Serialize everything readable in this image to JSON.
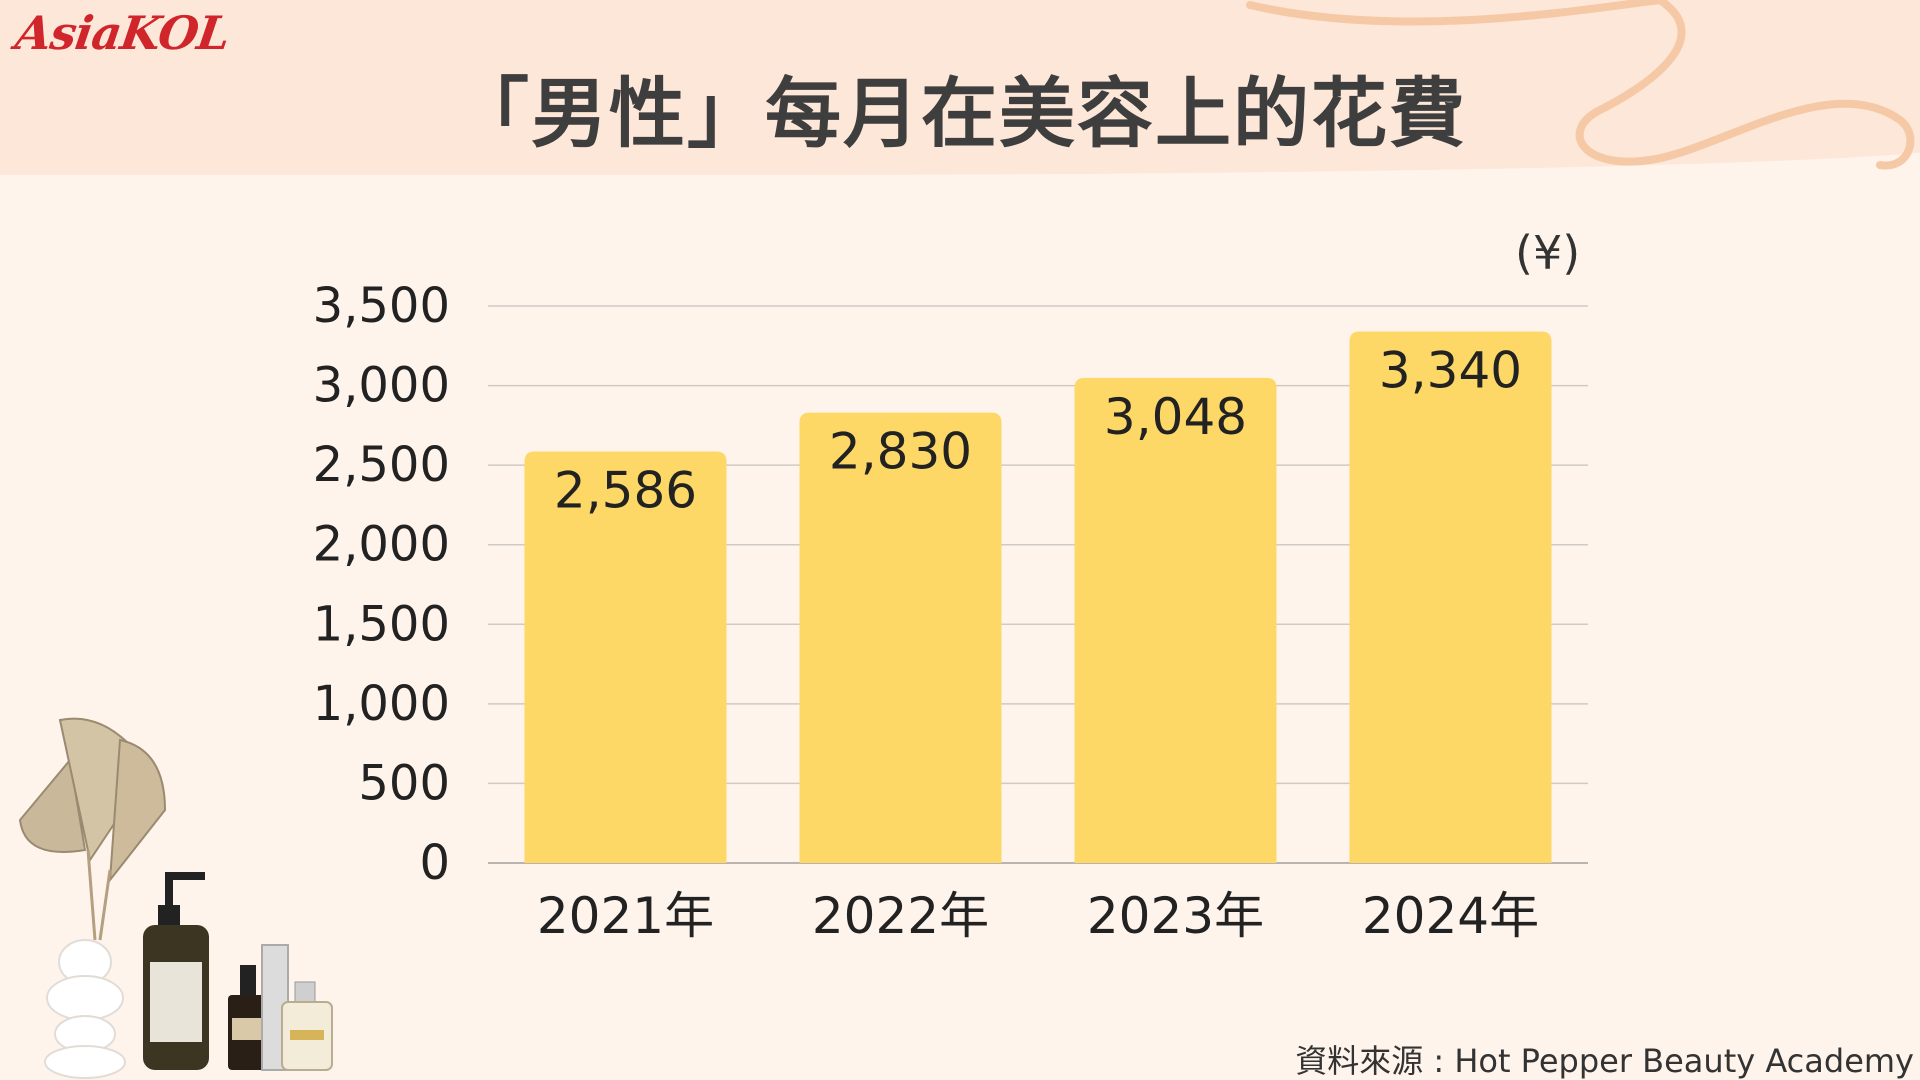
{
  "brand": {
    "logo_text": "AsiaKOL"
  },
  "title": "「男性」每月在美容上的花費",
  "unit_label": "(¥)",
  "source": "資料來源 : Hot Pepper Beauty Academy",
  "colors": {
    "background": "#fff4ec",
    "header_band": "#fde7d8",
    "bar": "#fdd866",
    "grid": "#cfcac6",
    "text": "#222222",
    "logo": "#d0262b"
  },
  "chart_data": {
    "type": "bar",
    "categories": [
      "2021年",
      "2022年",
      "2023年",
      "2024年"
    ],
    "values": [
      2586,
      2830,
      3048,
      3340
    ],
    "value_labels": [
      "2,586",
      "2,830",
      "3,048",
      "3,340"
    ],
    "ylim": [
      0,
      3500
    ],
    "yticks": [
      0,
      500,
      1000,
      1500,
      2000,
      2500,
      3000,
      3500
    ],
    "ytick_labels": [
      "0",
      "500",
      "1,000",
      "1,500",
      "2,000",
      "2,500",
      "3,000",
      "3,500"
    ],
    "grid": true,
    "legend": "none"
  }
}
